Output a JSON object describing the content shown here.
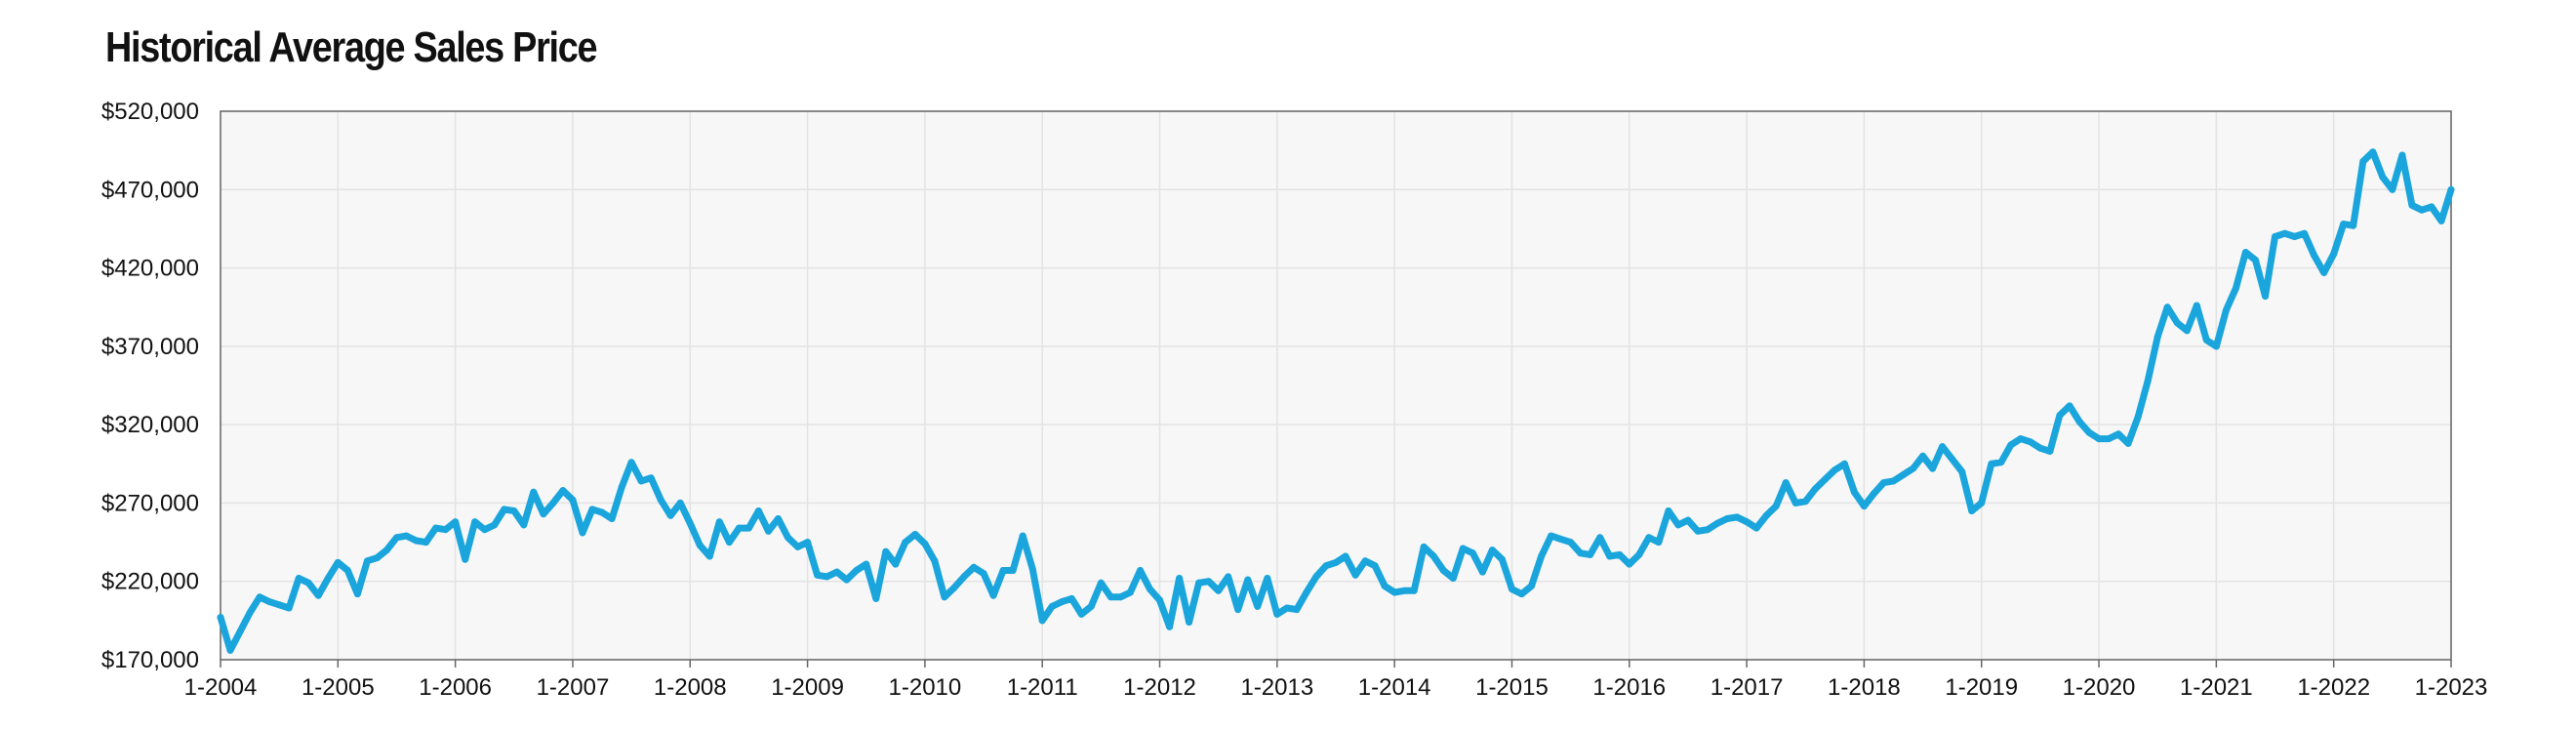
{
  "chart_data": {
    "type": "line",
    "title": "Historical Average Sales Price",
    "xlabel": "",
    "ylabel": "",
    "ylim": [
      170000,
      520000
    ],
    "y_ticks": [
      "$170,000",
      "$220,000",
      "$270,000",
      "$320,000",
      "$370,000",
      "$420,000",
      "$470,000",
      "$520,000"
    ],
    "x_ticks": [
      "1-2004",
      "1-2005",
      "1-2006",
      "1-2007",
      "1-2008",
      "1-2009",
      "1-2010",
      "1-2011",
      "1-2012",
      "1-2013",
      "1-2014",
      "1-2015",
      "1-2016",
      "1-2017",
      "1-2018",
      "1-2019",
      "1-2020",
      "1-2021",
      "1-2022",
      "1-2023"
    ],
    "grid": true,
    "colors": {
      "line": "#1aa5dc",
      "plot_bg": "#f7f7f7",
      "grid": "#e3e3e3",
      "border": "#666666"
    },
    "x_start": "2004-01",
    "x_end": "2023-02",
    "frequency": "monthly",
    "series": [
      {
        "name": "",
        "values": [
          197000,
          176000,
          188000,
          200000,
          210000,
          207000,
          205000,
          203000,
          222000,
          219000,
          211000,
          222000,
          232000,
          227000,
          212000,
          233000,
          235000,
          240000,
          248000,
          249000,
          246000,
          245000,
          254000,
          253000,
          258000,
          234000,
          258000,
          253000,
          256000,
          266000,
          265000,
          256000,
          277000,
          263000,
          270000,
          278000,
          272000,
          251000,
          266000,
          264000,
          260000,
          280000,
          296000,
          284000,
          286000,
          272000,
          262000,
          270000,
          257000,
          243000,
          236000,
          258000,
          245000,
          254000,
          254000,
          265000,
          252000,
          260000,
          248000,
          242000,
          245000,
          224000,
          223000,
          226000,
          221000,
          227000,
          231000,
          209000,
          239000,
          231000,
          245000,
          250000,
          244000,
          233000,
          210000,
          216000,
          223000,
          229000,
          225000,
          211000,
          227000,
          227000,
          249000,
          228000,
          195000,
          204000,
          207000,
          209000,
          199000,
          204000,
          219000,
          210000,
          210000,
          213000,
          227000,
          215000,
          208000,
          191000,
          222000,
          194000,
          219000,
          220000,
          214000,
          223000,
          202000,
          221000,
          204000,
          222000,
          199000,
          203000,
          202000,
          213000,
          223000,
          230000,
          232000,
          236000,
          224000,
          233000,
          230000,
          217000,
          213000,
          214000,
          214000,
          242000,
          236000,
          227000,
          222000,
          241000,
          238000,
          226000,
          240000,
          234000,
          215000,
          212000,
          217000,
          236000,
          249000,
          247000,
          245000,
          238000,
          237000,
          248000,
          236000,
          237000,
          231000,
          237000,
          248000,
          245000,
          265000,
          256000,
          259000,
          252000,
          253000,
          257000,
          260000,
          261000,
          258000,
          254000,
          262000,
          268000,
          283000,
          270000,
          271000,
          279000,
          285000,
          291000,
          295000,
          277000,
          268000,
          276000,
          283000,
          284000,
          288000,
          292000,
          300000,
          292000,
          306000,
          298000,
          290000,
          265000,
          270000,
          295000,
          296000,
          307000,
          311000,
          309000,
          305000,
          303000,
          326000,
          332000,
          322000,
          315000,
          311000,
          311000,
          314000,
          308000,
          325000,
          348000,
          376000,
          395000,
          385000,
          380000,
          396000,
          374000,
          370000,
          393000,
          407000,
          430000,
          425000,
          402000,
          440000,
          442000,
          440000,
          442000,
          428000,
          417000,
          429000,
          448000,
          447000,
          488000,
          494000,
          478000,
          470000,
          492000,
          460000,
          457000,
          459000,
          450000,
          470000
        ]
      }
    ]
  }
}
